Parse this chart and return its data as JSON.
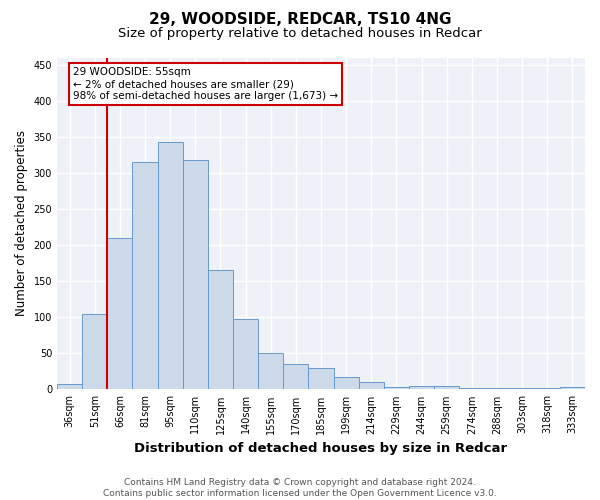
{
  "title": "29, WOODSIDE, REDCAR, TS10 4NG",
  "subtitle": "Size of property relative to detached houses in Redcar",
  "xlabel": "Distribution of detached houses by size in Redcar",
  "ylabel": "Number of detached properties",
  "categories": [
    "36sqm",
    "51sqm",
    "66sqm",
    "81sqm",
    "95sqm",
    "110sqm",
    "125sqm",
    "140sqm",
    "155sqm",
    "170sqm",
    "185sqm",
    "199sqm",
    "214sqm",
    "229sqm",
    "244sqm",
    "259sqm",
    "274sqm",
    "288sqm",
    "303sqm",
    "318sqm",
    "333sqm"
  ],
  "values": [
    7,
    105,
    210,
    315,
    343,
    318,
    165,
    97,
    50,
    35,
    30,
    17,
    10,
    4,
    5,
    5,
    2,
    2,
    2,
    2,
    3
  ],
  "bar_color": "#ccd9e8",
  "bar_edge_color": "#6699cc",
  "vline_color": "#cc0000",
  "annotation_text": "29 WOODSIDE: 55sqm\n← 2% of detached houses are smaller (29)\n98% of semi-detached houses are larger (1,673) →",
  "annotation_box_facecolor": "#ffffff",
  "annotation_box_edgecolor": "#cc0000",
  "ylim": [
    0,
    460
  ],
  "yticks": [
    0,
    50,
    100,
    150,
    200,
    250,
    300,
    350,
    400,
    450
  ],
  "footer": "Contains HM Land Registry data © Crown copyright and database right 2024.\nContains public sector information licensed under the Open Government Licence v3.0.",
  "background_color": "#eef2f8",
  "grid_color": "#ffffff",
  "title_fontsize": 11,
  "subtitle_fontsize": 9.5,
  "xlabel_fontsize": 9.5,
  "ylabel_fontsize": 8.5,
  "tick_fontsize": 7,
  "footer_fontsize": 6.5,
  "annotation_fontsize": 7.5
}
